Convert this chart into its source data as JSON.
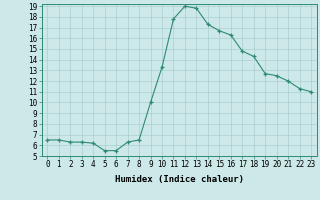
{
  "x": [
    0,
    1,
    2,
    3,
    4,
    5,
    6,
    7,
    8,
    9,
    10,
    11,
    12,
    13,
    14,
    15,
    16,
    17,
    18,
    19,
    20,
    21,
    22,
    23
  ],
  "y": [
    6.5,
    6.5,
    6.3,
    6.3,
    6.2,
    5.5,
    5.5,
    6.3,
    6.5,
    10.0,
    13.3,
    17.8,
    19.0,
    18.8,
    17.3,
    16.7,
    16.3,
    14.8,
    14.3,
    12.7,
    12.5,
    12.0,
    11.3,
    11.0
  ],
  "xlabel": "Humidex (Indice chaleur)",
  "line_color": "#2e8b72",
  "marker": "+",
  "background_color": "#cce8e8",
  "grid_color": "#aacfcf",
  "text_color": "#000000",
  "ylim": [
    5,
    19
  ],
  "xlim": [
    -0.5,
    23.5
  ],
  "yticks": [
    5,
    6,
    7,
    8,
    9,
    10,
    11,
    12,
    13,
    14,
    15,
    16,
    17,
    18,
    19
  ],
  "xticks": [
    0,
    1,
    2,
    3,
    4,
    5,
    6,
    7,
    8,
    9,
    10,
    11,
    12,
    13,
    14,
    15,
    16,
    17,
    18,
    19,
    20,
    21,
    22,
    23
  ],
  "xtick_labels": [
    "0",
    "1",
    "2",
    "3",
    "4",
    "5",
    "6",
    "7",
    "8",
    "9",
    "10",
    "11",
    "12",
    "13",
    "14",
    "15",
    "16",
    "17",
    "18",
    "19",
    "20",
    "21",
    "22",
    "23"
  ],
  "ytick_labels": [
    "5",
    "6",
    "7",
    "8",
    "9",
    "10",
    "11",
    "12",
    "13",
    "14",
    "15",
    "16",
    "17",
    "18",
    "19"
  ],
  "fontsize_ticks": 5.5,
  "fontsize_xlabel": 6.5
}
